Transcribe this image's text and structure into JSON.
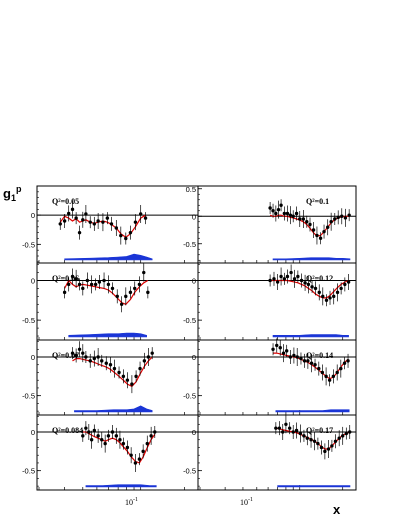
{
  "figure": {
    "y_axis_symbol": "g",
    "y_axis_subscript": "1",
    "y_axis_superscript": "p",
    "x_axis_label": "x",
    "x_tick_label_left": "10",
    "x_tick_label_right": "10",
    "x_tick_exponent": "-1"
  },
  "colors": {
    "points": "#000000",
    "model_curve": "#dd0000",
    "systematic_band": "#1a35d6",
    "frame": "#000000",
    "zero_line": "#000000"
  },
  "chart_data": [
    {
      "type": "scatter",
      "panel": "Q2=0.05",
      "q2_label": "Q²=0.05",
      "column": "left",
      "row": 0,
      "ytick_labels": [
        "0",
        "-0.5"
      ],
      "ylim": [
        -0.82,
        0.5
      ],
      "x": [
        0.028,
        0.03,
        0.032,
        0.034,
        0.036,
        0.038,
        0.04,
        0.042,
        0.045,
        0.048,
        0.051,
        0.055,
        0.059,
        0.063,
        0.068,
        0.073,
        0.079,
        0.085,
        0.092,
        0.1,
        0.108
      ],
      "y": [
        -0.15,
        -0.1,
        0.03,
        0.1,
        -0.05,
        -0.3,
        -0.08,
        0.02,
        -0.12,
        -0.15,
        -0.1,
        -0.12,
        -0.05,
        -0.15,
        -0.22,
        -0.35,
        -0.4,
        -0.3,
        -0.12,
        0.02,
        -0.05
      ],
      "model_y": [
        -0.12,
        -0.02,
        -0.05,
        -0.1,
        -0.06,
        -0.12,
        -0.1,
        -0.08,
        -0.12,
        -0.14,
        -0.12,
        -0.1,
        -0.12,
        -0.16,
        -0.22,
        -0.32,
        -0.38,
        -0.32,
        -0.2,
        -0.05,
        0.0
      ],
      "band_x": [
        0.03,
        0.045,
        0.06,
        0.07,
        0.08,
        0.09,
        0.1,
        0.11,
        0.12
      ],
      "band_height": [
        0.02,
        0.03,
        0.04,
        0.05,
        0.06,
        0.1,
        0.08,
        0.05,
        0.02
      ]
    },
    {
      "type": "scatter",
      "panel": "Q2=0.1",
      "q2_label": "Q²=0.1",
      "column": "right",
      "row": 0,
      "ytick_labels": [
        "0.5",
        "0",
        "-0.5"
      ],
      "ylim": [
        -0.85,
        0.55
      ],
      "x": [
        0.062,
        0.065,
        0.068,
        0.071,
        0.074,
        0.078,
        0.082,
        0.086,
        0.09,
        0.095,
        0.1,
        0.106,
        0.112,
        0.118,
        0.125,
        0.132,
        0.14,
        0.148,
        0.157,
        0.166,
        0.176,
        0.186,
        0.197,
        0.209,
        0.222
      ],
      "y": [
        0.15,
        0.1,
        0.05,
        0.12,
        0.2,
        0.05,
        0.05,
        0.02,
        0.0,
        0.05,
        -0.05,
        -0.05,
        -0.1,
        -0.15,
        -0.25,
        -0.35,
        -0.4,
        -0.28,
        -0.2,
        -0.1,
        -0.05,
        -0.02,
        0.0,
        -0.03,
        0.02
      ],
      "model_y": [
        0.02,
        0.0,
        0.0,
        0.02,
        0.02,
        0.0,
        0.0,
        -0.02,
        -0.03,
        -0.05,
        -0.07,
        -0.1,
        -0.15,
        -0.22,
        -0.3,
        -0.36,
        -0.35,
        -0.28,
        -0.2,
        -0.12,
        -0.06,
        -0.03,
        -0.01,
        0.0,
        0.0
      ],
      "band_x": [
        0.065,
        0.08,
        0.1,
        0.12,
        0.14,
        0.16,
        0.18,
        0.2,
        0.225
      ],
      "band_height": [
        0.02,
        0.02,
        0.03,
        0.04,
        0.04,
        0.04,
        0.03,
        0.03,
        0.02
      ]
    },
    {
      "type": "scatter",
      "panel": "Q2=0.06",
      "q2_label": "Q²=0.06",
      "column": "left",
      "row": 1,
      "ytick_labels": [
        "0",
        "-0.5"
      ],
      "ylim": [
        -0.75,
        0.22
      ],
      "x": [
        0.03,
        0.032,
        0.034,
        0.036,
        0.038,
        0.04,
        0.043,
        0.046,
        0.049,
        0.052,
        0.056,
        0.06,
        0.064,
        0.069,
        0.074,
        0.079,
        0.085,
        0.091,
        0.098,
        0.105,
        0.112
      ],
      "y": [
        -0.15,
        -0.05,
        0.05,
        0.02,
        -0.05,
        -0.1,
        0.0,
        -0.05,
        -0.05,
        -0.02,
        0.0,
        -0.05,
        -0.1,
        -0.2,
        -0.3,
        -0.2,
        -0.15,
        -0.1,
        -0.05,
        0.1,
        -0.15
      ],
      "model_y": [
        -0.1,
        0.0,
        -0.05,
        -0.08,
        -0.06,
        -0.05,
        -0.06,
        -0.07,
        -0.08,
        -0.09,
        -0.1,
        -0.12,
        -0.16,
        -0.22,
        -0.28,
        -0.3,
        -0.24,
        -0.15,
        -0.08,
        -0.03,
        0.0
      ],
      "band_x": [
        0.032,
        0.045,
        0.06,
        0.07,
        0.08,
        0.09,
        0.1,
        0.11
      ],
      "band_height": [
        0.02,
        0.03,
        0.04,
        0.04,
        0.05,
        0.05,
        0.04,
        0.02
      ]
    },
    {
      "type": "scatter",
      "panel": "Q2=0.12",
      "q2_label": "Q²=0.12",
      "column": "right",
      "row": 1,
      "ytick_labels": [
        "0",
        "-0.5"
      ],
      "ylim": [
        -0.75,
        0.22
      ],
      "x": [
        0.062,
        0.066,
        0.07,
        0.074,
        0.078,
        0.082,
        0.087,
        0.092,
        0.097,
        0.103,
        0.109,
        0.115,
        0.122,
        0.129,
        0.137,
        0.145,
        0.154,
        0.163,
        0.173,
        0.184,
        0.195,
        0.207,
        0.22
      ],
      "y": [
        0.0,
        0.02,
        -0.02,
        0.05,
        0.02,
        0.05,
        0.1,
        0.02,
        0.05,
        0.0,
        -0.03,
        -0.05,
        -0.08,
        -0.1,
        -0.15,
        -0.2,
        -0.25,
        -0.22,
        -0.2,
        -0.15,
        -0.1,
        -0.05,
        -0.02
      ],
      "model_y": [
        0.0,
        0.0,
        0.0,
        0.0,
        0.0,
        0.0,
        -0.01,
        -0.02,
        -0.03,
        -0.05,
        -0.07,
        -0.1,
        -0.13,
        -0.17,
        -0.2,
        -0.22,
        -0.22,
        -0.19,
        -0.14,
        -0.09,
        -0.05,
        -0.02,
        0.0
      ],
      "band_x": [
        0.065,
        0.08,
        0.1,
        0.12,
        0.14,
        0.16,
        0.18,
        0.2,
        0.22
      ],
      "band_height": [
        0.02,
        0.02,
        0.02,
        0.03,
        0.03,
        0.03,
        0.03,
        0.02,
        0.02
      ]
    },
    {
      "type": "scatter",
      "panel": "Q2=0.07",
      "q2_label": "Q²=0.07",
      "column": "left",
      "row": 2,
      "ytick_labels": [
        "0",
        "-0.5"
      ],
      "ylim": [
        -0.75,
        0.22
      ],
      "x": [
        0.034,
        0.036,
        0.038,
        0.04,
        0.042,
        0.045,
        0.048,
        0.051,
        0.054,
        0.058,
        0.062,
        0.066,
        0.071,
        0.076,
        0.081,
        0.087,
        0.093,
        0.099,
        0.106,
        0.113,
        0.12
      ],
      "y": [
        0.05,
        0.02,
        0.1,
        0.05,
        0.0,
        -0.05,
        -0.02,
        0.0,
        -0.05,
        -0.08,
        -0.1,
        -0.15,
        -0.2,
        -0.25,
        -0.3,
        -0.35,
        -0.25,
        -0.15,
        -0.05,
        0.0,
        0.05
      ],
      "model_y": [
        -0.05,
        -0.02,
        -0.02,
        -0.03,
        -0.04,
        -0.05,
        -0.07,
        -0.09,
        -0.11,
        -0.13,
        -0.16,
        -0.2,
        -0.25,
        -0.3,
        -0.35,
        -0.38,
        -0.32,
        -0.22,
        -0.12,
        -0.05,
        0.0
      ],
      "band_x": [
        0.035,
        0.05,
        0.065,
        0.08,
        0.09,
        0.1,
        0.11,
        0.12
      ],
      "band_height": [
        0.02,
        0.02,
        0.03,
        0.03,
        0.04,
        0.08,
        0.04,
        0.02
      ]
    },
    {
      "type": "scatter",
      "panel": "Q2=0.14",
      "q2_label": "Q²=0.14",
      "column": "right",
      "row": 2,
      "ytick_labels": [
        "0",
        "-0.5"
      ],
      "ylim": [
        -0.75,
        0.22
      ],
      "x": [
        0.065,
        0.069,
        0.073,
        0.077,
        0.081,
        0.086,
        0.091,
        0.096,
        0.102,
        0.108,
        0.114,
        0.121,
        0.128,
        0.136,
        0.144,
        0.153,
        0.162,
        0.172,
        0.183,
        0.194,
        0.206,
        0.218
      ],
      "y": [
        0.1,
        0.15,
        0.12,
        0.05,
        0.08,
        0.0,
        0.02,
        0.0,
        -0.02,
        -0.05,
        -0.05,
        -0.08,
        -0.1,
        -0.15,
        -0.2,
        -0.25,
        -0.3,
        -0.25,
        -0.2,
        -0.15,
        -0.08,
        -0.05
      ],
      "model_y": [
        0.05,
        0.05,
        0.04,
        0.03,
        0.02,
        0.01,
        0.0,
        -0.01,
        -0.03,
        -0.05,
        -0.07,
        -0.1,
        -0.13,
        -0.17,
        -0.21,
        -0.25,
        -0.28,
        -0.26,
        -0.2,
        -0.13,
        -0.07,
        -0.03
      ],
      "band_x": [
        0.068,
        0.085,
        0.105,
        0.125,
        0.145,
        0.165,
        0.185,
        0.205,
        0.222
      ],
      "band_height": [
        0.02,
        0.02,
        0.02,
        0.02,
        0.02,
        0.03,
        0.03,
        0.03,
        0.03
      ]
    },
    {
      "type": "scatter",
      "panel": "Q2=0.084",
      "q2_label": "Q²=0.084",
      "column": "left",
      "row": 3,
      "ytick_labels": [
        "0",
        "-0.5"
      ],
      "ylim": [
        -0.75,
        0.22
      ],
      "x": [
        0.04,
        0.042,
        0.044,
        0.046,
        0.048,
        0.051,
        0.054,
        0.057,
        0.06,
        0.064,
        0.068,
        0.072,
        0.076,
        0.081,
        0.086,
        0.092,
        0.098,
        0.104,
        0.111,
        0.118,
        0.125
      ],
      "y": [
        -0.05,
        0.05,
        0.0,
        -0.1,
        0.02,
        -0.05,
        -0.1,
        -0.15,
        -0.05,
        0.0,
        -0.05,
        -0.1,
        -0.15,
        -0.2,
        -0.3,
        -0.4,
        -0.35,
        -0.25,
        -0.15,
        -0.05,
        0.0
      ],
      "model_y": [
        0.0,
        0.0,
        -0.02,
        -0.04,
        -0.06,
        -0.08,
        -0.1,
        -0.12,
        -0.1,
        -0.08,
        -0.1,
        -0.14,
        -0.19,
        -0.25,
        -0.32,
        -0.38,
        -0.4,
        -0.32,
        -0.2,
        -0.1,
        -0.03
      ],
      "band_x": [
        0.042,
        0.055,
        0.07,
        0.085,
        0.1,
        0.115,
        0.128
      ],
      "band_height": [
        0.02,
        0.02,
        0.03,
        0.03,
        0.03,
        0.02,
        0.02
      ]
    },
    {
      "type": "scatter",
      "panel": "Q2=0.17",
      "q2_label": "Q²=0.17",
      "column": "right",
      "row": 3,
      "ytick_labels": [
        "0",
        "-0.5"
      ],
      "ylim": [
        -0.75,
        0.22
      ],
      "x": [
        0.068,
        0.072,
        0.076,
        0.08,
        0.085,
        0.09,
        0.095,
        0.101,
        0.107,
        0.113,
        0.12,
        0.127,
        0.134,
        0.142,
        0.15,
        0.159,
        0.168,
        0.178,
        0.189,
        0.2,
        0.212,
        0.224
      ],
      "y": [
        0.05,
        0.05,
        0.0,
        0.1,
        0.05,
        0.0,
        0.02,
        -0.02,
        -0.05,
        -0.08,
        -0.1,
        -0.12,
        -0.15,
        -0.2,
        -0.25,
        -0.22,
        -0.18,
        -0.12,
        -0.08,
        -0.05,
        -0.02,
        0.0
      ],
      "model_y": [
        0.05,
        0.04,
        0.03,
        0.02,
        0.01,
        0.0,
        -0.01,
        -0.03,
        -0.05,
        -0.07,
        -0.09,
        -0.12,
        -0.15,
        -0.19,
        -0.22,
        -0.22,
        -0.18,
        -0.13,
        -0.08,
        -0.04,
        -0.02,
        0.0
      ],
      "band_x": [
        0.07,
        0.09,
        0.11,
        0.13,
        0.15,
        0.17,
        0.19,
        0.21,
        0.225
      ],
      "band_height": [
        0.02,
        0.02,
        0.02,
        0.02,
        0.02,
        0.02,
        0.02,
        0.02,
        0.02
      ]
    }
  ]
}
